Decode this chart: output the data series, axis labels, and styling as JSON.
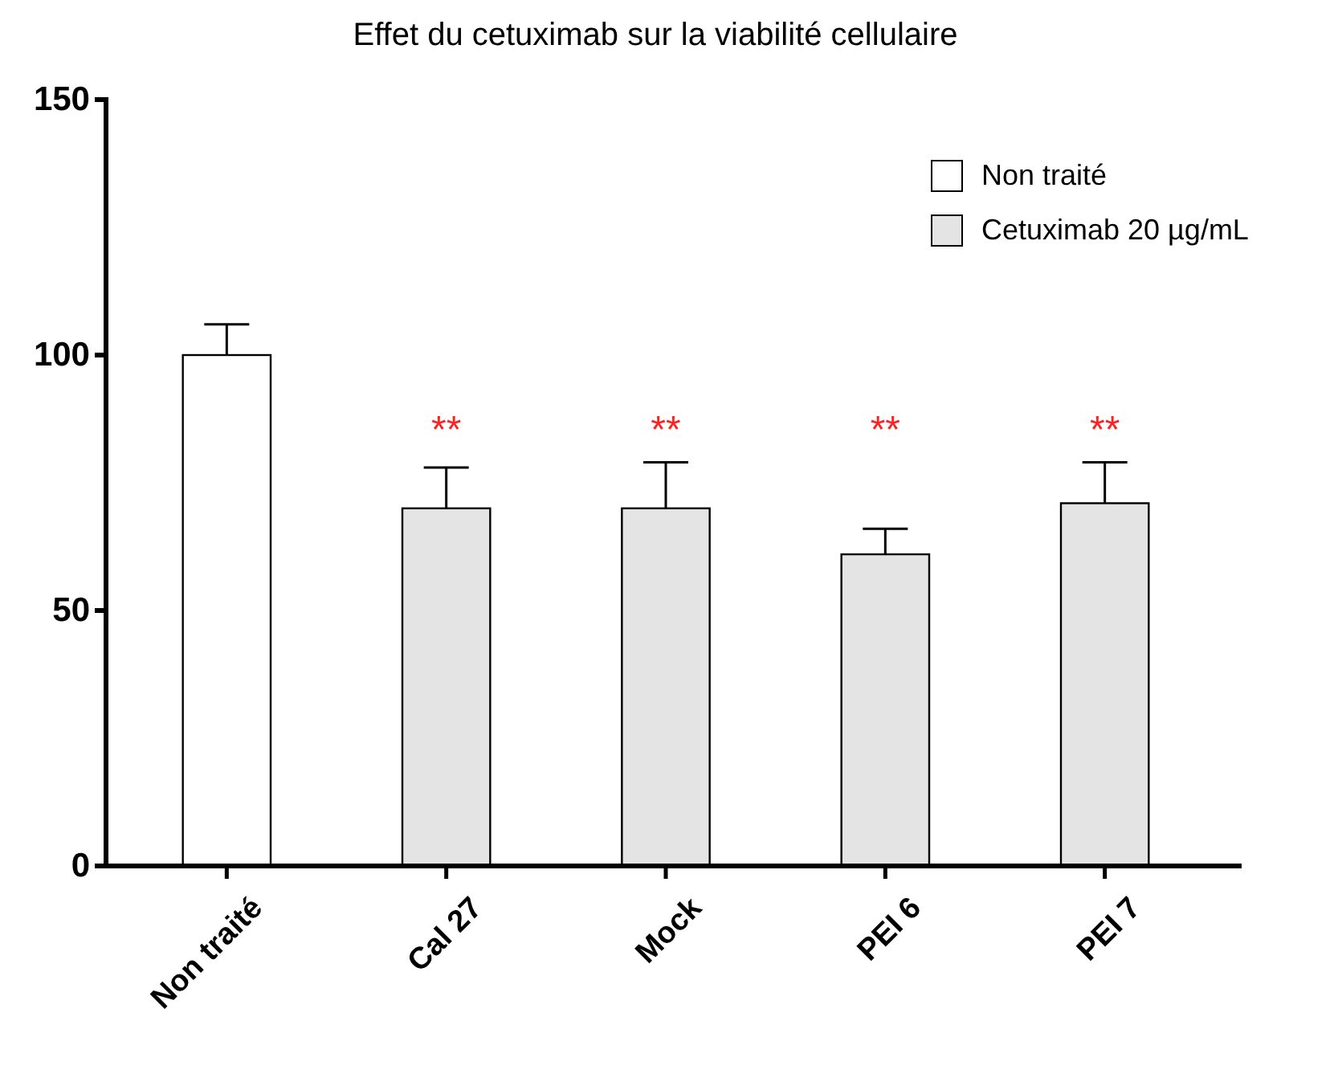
{
  "chart_data": {
    "type": "bar",
    "title": "Effet du cetuximab sur la viabilité cellulaire",
    "categories": [
      "Non traité",
      "Cal 27",
      "Mock",
      "PEI 6",
      "PEI 7"
    ],
    "series": [
      {
        "name": "Non traité",
        "color": "#ffffff",
        "values": [
          100,
          null,
          null,
          null,
          null
        ],
        "errors": [
          6,
          null,
          null,
          null,
          null
        ]
      },
      {
        "name": "Cetuximab 20 µg/mL",
        "color": "#e4e4e4",
        "values": [
          null,
          70,
          70,
          61,
          71
        ],
        "errors": [
          null,
          8,
          9,
          5,
          8
        ]
      }
    ],
    "ylim": [
      0,
      150
    ],
    "yticks": [
      0,
      50,
      100,
      150
    ],
    "grid": false,
    "legend": "top right",
    "annotations": [
      "**",
      "**",
      "**",
      "**"
    ]
  }
}
